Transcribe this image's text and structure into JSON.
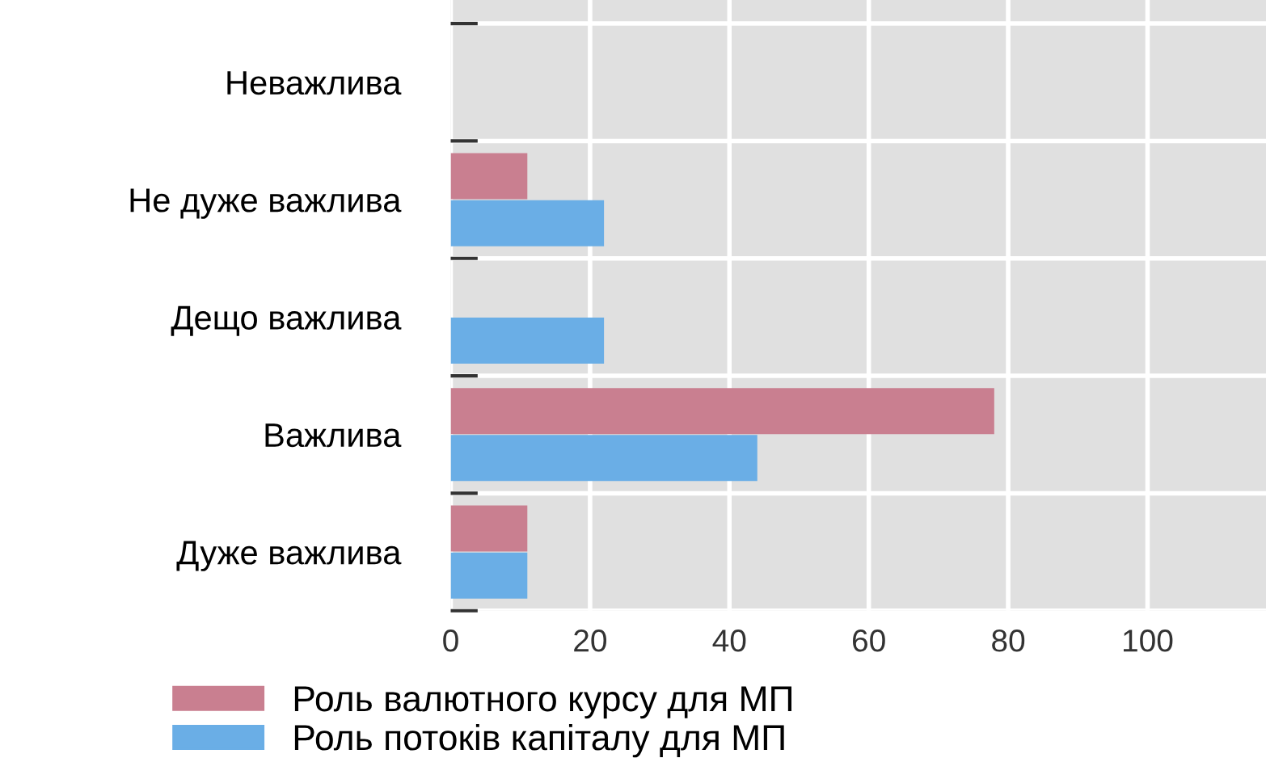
{
  "chart_data": {
    "type": "bar",
    "orientation": "horizontal",
    "categories": [
      "Неважлива",
      "Не дуже важлива",
      "Дещо важлива",
      "Важлива",
      "Дуже важлива"
    ],
    "series": [
      {
        "name": "Роль валютного курсу для МП",
        "color": "#c97f90",
        "values": [
          0,
          11,
          0,
          78,
          11
        ]
      },
      {
        "name": "Роль потоків капіталу для МП",
        "color": "#6aaee6",
        "values": [
          0,
          22,
          22,
          44,
          11
        ]
      }
    ],
    "xlim": [
      0,
      117
    ],
    "xticks": [
      0,
      20,
      40,
      60,
      80,
      100
    ],
    "grid": true,
    "legend": "bottom left"
  }
}
